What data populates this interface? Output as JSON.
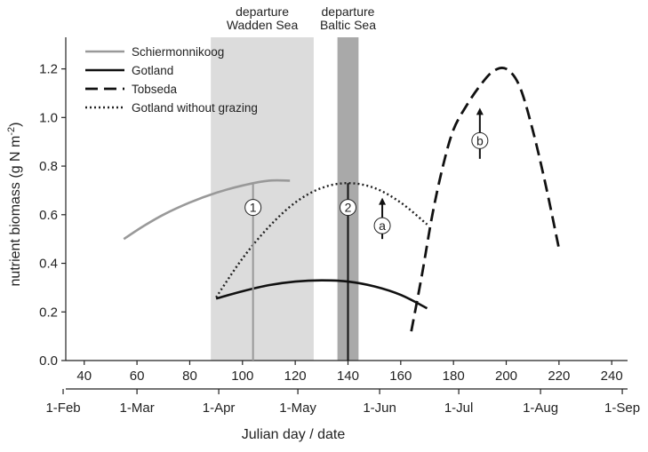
{
  "chart_data": {
    "type": "line",
    "xlabel": "Julian day / date",
    "ylabel": "nutrient biomass (g N m",
    "ylabel_sup": "-2",
    "ylabel_close": ")",
    "xlim": [
      33,
      246
    ],
    "ylim": [
      0,
      1.33
    ],
    "x_ticks": [
      40,
      60,
      80,
      100,
      120,
      140,
      160,
      180,
      200,
      220,
      240
    ],
    "y_ticks": [
      "0.0",
      "0.2",
      "0.4",
      "0.6",
      "0.8",
      "1.0",
      "1.2"
    ],
    "date_ticks": [
      {
        "day": 32,
        "label": "1-Feb"
      },
      {
        "day": 60,
        "label": "1-Mar"
      },
      {
        "day": 91,
        "label": "1-Apr"
      },
      {
        "day": 121,
        "label": "1-May"
      },
      {
        "day": 152,
        "label": "1-Jun"
      },
      {
        "day": 182,
        "label": "1-Jul"
      },
      {
        "day": 213,
        "label": "1-Aug"
      },
      {
        "day": 244,
        "label": "1-Sep"
      }
    ],
    "bands": [
      {
        "name": "Wadden Sea",
        "x0": 88,
        "x1": 127,
        "color": "#dcdcdc",
        "label": [
          "departure",
          "Wadden Sea"
        ]
      },
      {
        "name": "Baltic Sea",
        "x0": 136,
        "x1": 144,
        "color": "#a9a9a9",
        "label": [
          "departure",
          "Baltic Sea"
        ]
      }
    ],
    "series": [
      {
        "name": "Schiermonnikoog",
        "color": "#999999",
        "style": "solid",
        "x": [
          55,
          62,
          70,
          80,
          90,
          100,
          110,
          118
        ],
        "y": [
          0.5,
          0.55,
          0.6,
          0.65,
          0.69,
          0.72,
          0.74,
          0.74
        ]
      },
      {
        "name": "Gotland",
        "color": "#111111",
        "style": "solid",
        "x": [
          90,
          100,
          110,
          120,
          130,
          140,
          150,
          160,
          170
        ],
        "y": [
          0.255,
          0.285,
          0.31,
          0.325,
          0.33,
          0.325,
          0.305,
          0.27,
          0.215
        ]
      },
      {
        "name": "Tobseda",
        "color": "#111111",
        "style": "dashed",
        "x": [
          164,
          168,
          172,
          176,
          180,
          185,
          190,
          195,
          200,
          205,
          210,
          215,
          220
        ],
        "y": [
          0.12,
          0.35,
          0.6,
          0.8,
          0.95,
          1.05,
          1.13,
          1.19,
          1.2,
          1.13,
          0.95,
          0.72,
          0.46
        ]
      },
      {
        "name": "Gotland without grazing",
        "color": "#222222",
        "style": "dotted",
        "x": [
          90,
          100,
          110,
          120,
          130,
          140,
          150,
          160,
          170
        ],
        "y": [
          0.26,
          0.42,
          0.55,
          0.65,
          0.71,
          0.73,
          0.71,
          0.65,
          0.56
        ]
      }
    ],
    "vlines": [
      {
        "x": 104,
        "y": 0.73,
        "color": "#999999",
        "label": "1",
        "label_y": 0.63
      },
      {
        "x": 140,
        "y": 0.73,
        "color": "#111111",
        "label": "2",
        "label_y": 0.63
      }
    ],
    "arrows": [
      {
        "x": 153,
        "y0": 0.5,
        "y1": 0.67,
        "label": "a",
        "label_y": 0.555
      },
      {
        "x": 190,
        "y0": 0.83,
        "y1": 1.04,
        "label": "b",
        "label_y": 0.905
      }
    ],
    "legend_position": "top-left"
  }
}
